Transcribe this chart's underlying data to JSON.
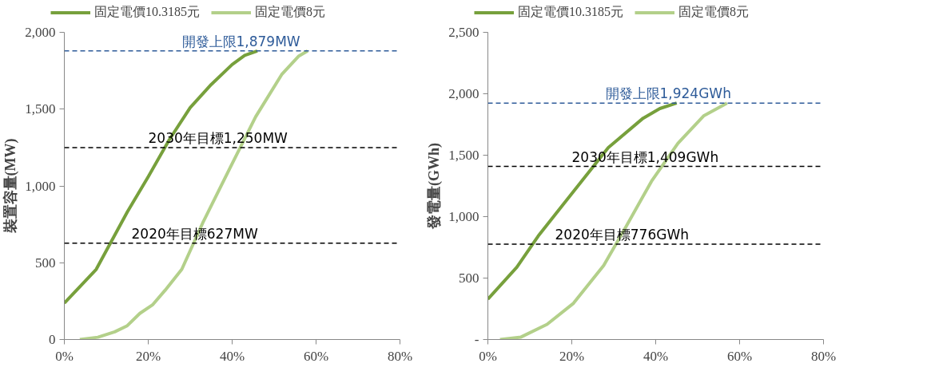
{
  "chart_data": [
    {
      "type": "line",
      "ylabel": "裝置容量(MW)",
      "legend": "top",
      "grid": false,
      "xlim": [
        0,
        80
      ],
      "xticks": [
        {
          "value": 0,
          "label": "0%"
        },
        {
          "value": 20,
          "label": "20%"
        },
        {
          "value": 40,
          "label": "40%"
        },
        {
          "value": 60,
          "label": "60%"
        },
        {
          "value": 80,
          "label": "80%"
        }
      ],
      "ylim": [
        0,
        2000
      ],
      "yticks": [
        {
          "value": 0,
          "label": "0"
        },
        {
          "value": 500,
          "label": "500"
        },
        {
          "value": 1000,
          "label": "1,000"
        },
        {
          "value": 1500,
          "label": "1,500"
        },
        {
          "value": 2000,
          "label": "2,000"
        }
      ],
      "series": [
        {
          "name": "固定電價10.3185元",
          "color": "#77a03c",
          "x": [
            0,
            7.6,
            15,
            20,
            25,
            30,
            35,
            40,
            43,
            46
          ],
          "values": [
            237,
            457,
            830,
            1060,
            1300,
            1510,
            1660,
            1790,
            1850,
            1879
          ]
        },
        {
          "name": "固定電價8元",
          "color": "#b3d08a",
          "x": [
            3.7,
            8,
            12,
            15,
            18,
            21,
            24,
            28,
            33,
            39.5,
            45.6,
            51.8,
            55.9,
            58
          ],
          "values": [
            0,
            15,
            50,
            90,
            170,
            225,
            320,
            457,
            760,
            1118,
            1450,
            1725,
            1846,
            1879
          ]
        }
      ],
      "ref_lines": [
        {
          "axis": "y",
          "value": 1879,
          "label": "開發上限1,879MW",
          "color": "#2e5b99",
          "line_style": "dashed"
        },
        {
          "axis": "y",
          "value": 1250,
          "label": "2030年目標1,250MW",
          "color": "#000000",
          "line_style": "dashed"
        },
        {
          "axis": "y",
          "value": 627,
          "label": "2020年目標627MW",
          "color": "#000000",
          "line_style": "dashed"
        }
      ]
    },
    {
      "type": "line",
      "ylabel": "發電量(GWh)",
      "legend": "top",
      "grid": false,
      "xlim": [
        0,
        80
      ],
      "xticks": [
        {
          "value": 0,
          "label": "0%"
        },
        {
          "value": 20,
          "label": "20%"
        },
        {
          "value": 40,
          "label": "40%"
        },
        {
          "value": 60,
          "label": "60%"
        },
        {
          "value": 80,
          "label": "80%"
        }
      ],
      "ylim": [
        0,
        2500
      ],
      "yticks": [
        {
          "value": 0,
          "label": "-"
        },
        {
          "value": 500,
          "label": "500"
        },
        {
          "value": 1000,
          "label": "1,000"
        },
        {
          "value": 1500,
          "label": "1,500"
        },
        {
          "value": 2000,
          "label": "2,000"
        },
        {
          "value": 2500,
          "label": "2,500"
        }
      ],
      "series": [
        {
          "name": "固定電價10.3185元",
          "color": "#77a03c",
          "x": [
            0,
            6.9,
            12,
            20.4,
            28.7,
            37,
            41,
            45
          ],
          "values": [
            329,
            589,
            842,
            1205,
            1562,
            1801,
            1880,
            1924
          ]
        },
        {
          "name": "固定電價8元",
          "color": "#b3d08a",
          "x": [
            2.9,
            7.9,
            14.1,
            20.4,
            27.6,
            32.8,
            39,
            45.3,
            51.5,
            57
          ],
          "values": [
            0,
            20,
            123,
            295,
            603,
            911,
            1288,
            1596,
            1822,
            1924
          ]
        }
      ],
      "ref_lines": [
        {
          "axis": "y",
          "value": 1924,
          "label": "開發上限1,924GWh",
          "color": "#2e5b99",
          "line_style": "dashed"
        },
        {
          "axis": "y",
          "value": 1409,
          "label": "2030年目標1,409GWh",
          "color": "#000000",
          "line_style": "dashed"
        },
        {
          "axis": "y",
          "value": 776,
          "label": "2020年目標776GWh",
          "color": "#000000",
          "line_style": "dashed"
        }
      ]
    }
  ]
}
